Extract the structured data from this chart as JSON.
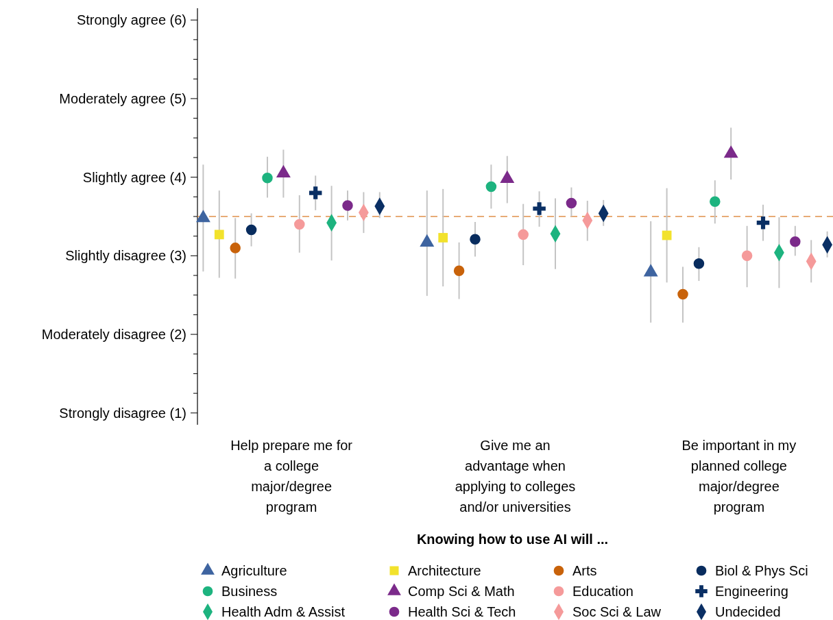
{
  "chart_data": {
    "type": "scatter",
    "xlabel": "Knowing how to use AI will ...",
    "categories": [
      "Help prepare me for a college major/degree program",
      "Give me an advantage when applying to colleges and/or universities",
      "Be important in my planned college major/degree program"
    ],
    "ylim": [
      0.85,
      6.15
    ],
    "yticks": [
      {
        "value": 1,
        "label": "Strongly disagree (1)"
      },
      {
        "value": 1.25,
        "label": null
      },
      {
        "value": 1.5,
        "label": null
      },
      {
        "value": 1.75,
        "label": null
      },
      {
        "value": 2,
        "label": "Moderately disagree (2)"
      },
      {
        "value": 2.25,
        "label": null
      },
      {
        "value": 2.5,
        "label": null
      },
      {
        "value": 2.75,
        "label": null
      },
      {
        "value": 3,
        "label": "Slightly disagree (3)"
      },
      {
        "value": 3.25,
        "label": null
      },
      {
        "value": 3.5,
        "label": null
      },
      {
        "value": 3.75,
        "label": null
      },
      {
        "value": 4,
        "label": "Slightly agree (4)"
      },
      {
        "value": 4.25,
        "label": null
      },
      {
        "value": 4.5,
        "label": null
      },
      {
        "value": 4.75,
        "label": null
      },
      {
        "value": 5,
        "label": "Moderately agree (5)"
      },
      {
        "value": 5.25,
        "label": null
      },
      {
        "value": 5.5,
        "label": null
      },
      {
        "value": 5.75,
        "label": null
      },
      {
        "value": 6,
        "label": "Strongly agree (6)"
      }
    ],
    "grid": false,
    "legend": "bottom",
    "ref_lines": [
      {
        "axis": "y",
        "value": 3.5,
        "color": "#e0904a",
        "line_style": "dashed"
      }
    ],
    "series": [
      {
        "name": "Agriculture",
        "color": "#3e64a0",
        "marker": "triangle",
        "values": [
          3.48,
          3.17,
          2.79
        ],
        "errors": [
          [
            2.8,
            4.16
          ],
          [
            2.49,
            3.83
          ],
          [
            2.15,
            3.44
          ]
        ]
      },
      {
        "name": "Architecture",
        "color": "#f2e22c",
        "marker": "square",
        "values": [
          3.27,
          3.23,
          3.26
        ],
        "errors": [
          [
            2.72,
            3.83
          ],
          [
            2.61,
            3.85
          ],
          [
            2.66,
            3.86
          ]
        ]
      },
      {
        "name": "Arts",
        "color": "#c8620a",
        "marker": "circle",
        "values": [
          3.1,
          2.81,
          2.51
        ],
        "errors": [
          [
            2.71,
            3.48
          ],
          [
            2.45,
            3.17
          ],
          [
            2.15,
            2.86
          ]
        ]
      },
      {
        "name": "Biol & Phys Sci",
        "color": "#082c5e",
        "marker": "circle",
        "values": [
          3.33,
          3.21,
          2.9
        ],
        "errors": [
          [
            3.12,
            3.54
          ],
          [
            2.99,
            3.43
          ],
          [
            2.68,
            3.11
          ]
        ]
      },
      {
        "name": "Business",
        "color": "#1db37f",
        "marker": "circle",
        "values": [
          3.99,
          3.88,
          3.69
        ],
        "errors": [
          [
            3.74,
            4.26
          ],
          [
            3.6,
            4.16
          ],
          [
            3.41,
            3.96
          ]
        ]
      },
      {
        "name": "Comp Sci & Math",
        "color": "#7b2a8a",
        "marker": "triangle",
        "values": [
          4.05,
          3.98,
          4.3
        ],
        "errors": [
          [
            3.74,
            4.35
          ],
          [
            3.67,
            4.27
          ],
          [
            3.97,
            4.63
          ]
        ]
      },
      {
        "name": "Education",
        "color": "#f59a9a",
        "marker": "circle",
        "values": [
          3.4,
          3.27,
          3.0
        ],
        "errors": [
          [
            3.04,
            3.77
          ],
          [
            2.88,
            3.66
          ],
          [
            2.6,
            3.38
          ]
        ]
      },
      {
        "name": "Engineering",
        "color": "#0a2f64",
        "marker": "cross",
        "values": [
          3.8,
          3.6,
          3.42
        ],
        "errors": [
          [
            3.58,
            4.02
          ],
          [
            3.37,
            3.82
          ],
          [
            3.19,
            3.65
          ]
        ]
      },
      {
        "name": "Health Adm & Assist",
        "color": "#1db37f",
        "marker": "diamond",
        "values": [
          3.42,
          3.28,
          3.04
        ],
        "errors": [
          [
            2.94,
            3.89
          ],
          [
            2.83,
            3.73
          ],
          [
            2.59,
            3.49
          ]
        ]
      },
      {
        "name": "Health Sci & Tech",
        "color": "#7b2a8a",
        "marker": "circle",
        "values": [
          3.64,
          3.67,
          3.18
        ],
        "errors": [
          [
            3.45,
            3.83
          ],
          [
            3.5,
            3.87
          ],
          [
            3.0,
            3.38
          ]
        ]
      },
      {
        "name": "Soc Sci & Law",
        "color": "#f59a9a",
        "marker": "diamond",
        "values": [
          3.55,
          3.45,
          2.93
        ],
        "errors": [
          [
            3.29,
            3.81
          ],
          [
            3.19,
            3.7
          ],
          [
            2.66,
            3.2
          ]
        ]
      },
      {
        "name": "Undecided",
        "color": "#0a2f64",
        "marker": "diamond",
        "values": [
          3.63,
          3.54,
          3.14
        ],
        "errors": [
          [
            3.48,
            3.81
          ],
          [
            3.38,
            3.71
          ],
          [
            2.98,
            3.31
          ]
        ]
      }
    ]
  }
}
